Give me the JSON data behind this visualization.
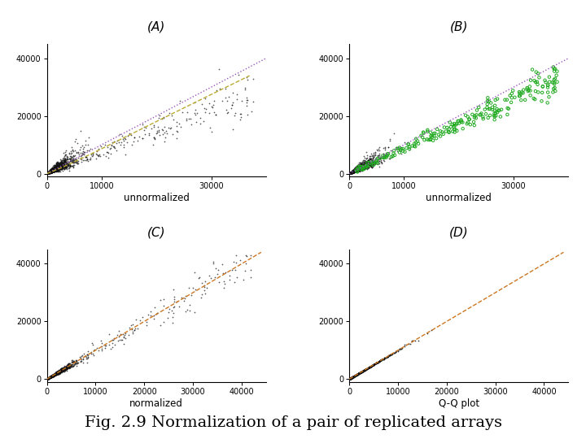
{
  "title": "Fig. 2.9 Normalization of a pair of replicated arrays",
  "title_fontsize": 14,
  "panel_labels": [
    "(A)",
    "(B)",
    "(C)",
    "(D)"
  ],
  "xlabels": [
    "unnormalized",
    "unnormalized",
    "normalized",
    "Q-Q plot"
  ],
  "xticks_AB": [
    0,
    10000,
    30000
  ],
  "yticks_AB": [
    0,
    20000,
    40000
  ],
  "xticks_CD": [
    0,
    10000,
    20000,
    30000,
    40000
  ],
  "yticks_CD": [
    0,
    20000,
    40000
  ],
  "xlim_AB": [
    0,
    40000
  ],
  "ylim_AB": [
    -1000,
    45000
  ],
  "xlim_CD": [
    0,
    45000
  ],
  "ylim_CD": [
    -1000,
    45000
  ],
  "diag_color_AB": "#9955bb",
  "diag_color_CD": "#cc7722",
  "lowess_color_A": "#bbaa33",
  "dot_color_black": "#111111",
  "dot_color_green": "#22aa22",
  "dot_size_black": 1.5,
  "dot_size_green": 6,
  "random_seed": 12345,
  "background_color": "#ffffff"
}
